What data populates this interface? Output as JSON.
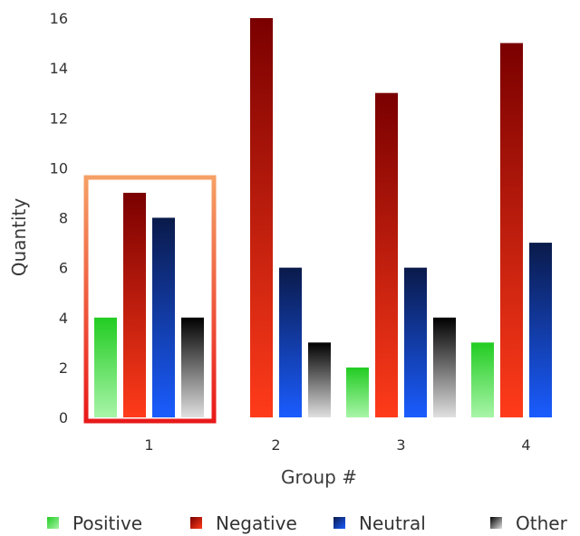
{
  "chart_data": {
    "type": "bar",
    "title": "",
    "xlabel": "Group #",
    "ylabel": "Quantity",
    "categories": [
      "1",
      "2",
      "3",
      "4"
    ],
    "ylim": [
      0,
      16
    ],
    "yticks": [
      "0",
      "2",
      "4",
      "6",
      "8",
      "10",
      "12",
      "14",
      "16"
    ],
    "grid": false,
    "legend_position": "bottom",
    "series": [
      {
        "name": "Positive",
        "values": [
          4,
          0,
          2,
          3
        ],
        "color_top": "#22cc22",
        "color_bottom": "#a8f5a8"
      },
      {
        "name": "Negative",
        "values": [
          9,
          16,
          13,
          15
        ],
        "color_top": "#7a0000",
        "color_bottom": "#ff3b1a"
      },
      {
        "name": "Neutral",
        "values": [
          8,
          6,
          6,
          7
        ],
        "color_top": "#0a1a4a",
        "color_bottom": "#1a5cff"
      },
      {
        "name": "Other",
        "values": [
          4,
          3,
          4,
          0
        ],
        "color_top": "#000000",
        "color_bottom": "#e0e0e0"
      }
    ],
    "highlight": {
      "category": "1",
      "border_color_top": "#f5a066",
      "border_color_bottom": "#e8191a"
    }
  }
}
